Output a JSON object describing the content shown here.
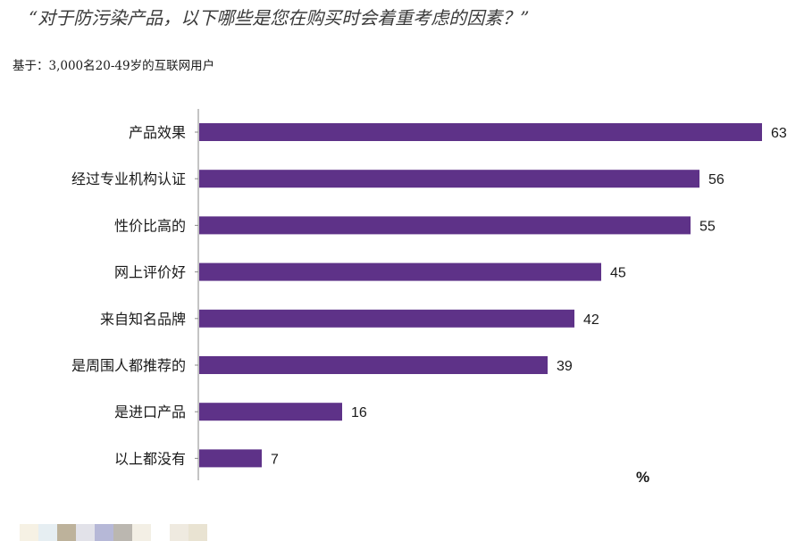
{
  "header": {
    "title": "“对于防污染产品，以下哪些是您在购买时会着重考虑的因素？”",
    "subtitle": "基于：3,000名20-49岁的互联网用户"
  },
  "chart_data": {
    "type": "bar",
    "orientation": "horizontal",
    "categories": [
      "产品效果",
      "经过专业机构认证",
      "性价比高的",
      "网上评价好",
      "来自知名品牌",
      "是周围人都推荐的",
      "是进口产品",
      "以上都没有"
    ],
    "values": [
      63,
      56,
      55,
      45,
      42,
      39,
      16,
      7
    ],
    "unit_label": "%",
    "xlim": [
      0,
      70
    ],
    "bar_color": "#5e3288",
    "data_labels": true,
    "grid": false
  },
  "footer_swatches": [
    "#f6f1e4",
    "#e6eef2",
    "#bdb29b",
    "#e2e2e9",
    "#b6b8d7",
    "#bbb7b0",
    "#f3efe5",
    "#ffffff",
    "#efeae0",
    "#e9e3d2"
  ]
}
